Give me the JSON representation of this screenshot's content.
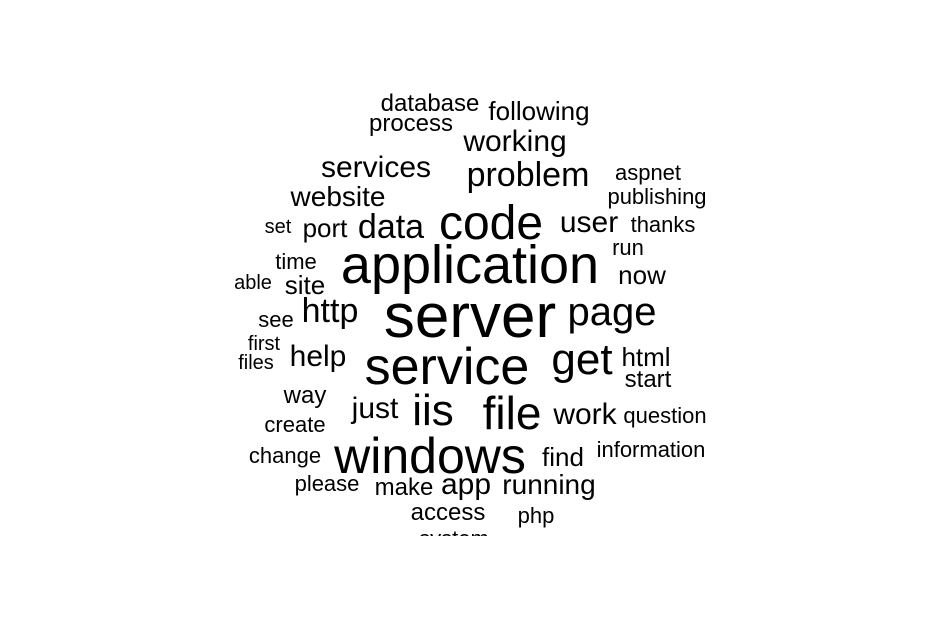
{
  "words": [
    {
      "text": "server"
    },
    {
      "text": "application"
    },
    {
      "text": "service"
    },
    {
      "text": "code"
    },
    {
      "text": "windows"
    },
    {
      "text": "file"
    },
    {
      "text": "get"
    },
    {
      "text": "iis"
    },
    {
      "text": "page"
    },
    {
      "text": "problem"
    },
    {
      "text": "http"
    },
    {
      "text": "working"
    },
    {
      "text": "data"
    },
    {
      "text": "services"
    },
    {
      "text": "user"
    },
    {
      "text": "website"
    },
    {
      "text": "help"
    },
    {
      "text": "just"
    },
    {
      "text": "work"
    },
    {
      "text": "app"
    },
    {
      "text": "running"
    },
    {
      "text": "port"
    },
    {
      "text": "following"
    },
    {
      "text": "process"
    },
    {
      "text": "database"
    },
    {
      "text": "find"
    },
    {
      "text": "make"
    },
    {
      "text": "access"
    },
    {
      "text": "now"
    },
    {
      "text": "html"
    },
    {
      "text": "start"
    },
    {
      "text": "site"
    },
    {
      "text": "way"
    },
    {
      "text": "time"
    },
    {
      "text": "publishing"
    },
    {
      "text": "aspnet"
    },
    {
      "text": "thanks"
    },
    {
      "text": "run"
    },
    {
      "text": "question"
    },
    {
      "text": "information"
    },
    {
      "text": "change"
    },
    {
      "text": "create"
    },
    {
      "text": "please"
    },
    {
      "text": "see"
    },
    {
      "text": "first"
    },
    {
      "text": "files"
    },
    {
      "text": "able"
    },
    {
      "text": "set"
    },
    {
      "text": "php"
    },
    {
      "text": "system"
    }
  ]
}
